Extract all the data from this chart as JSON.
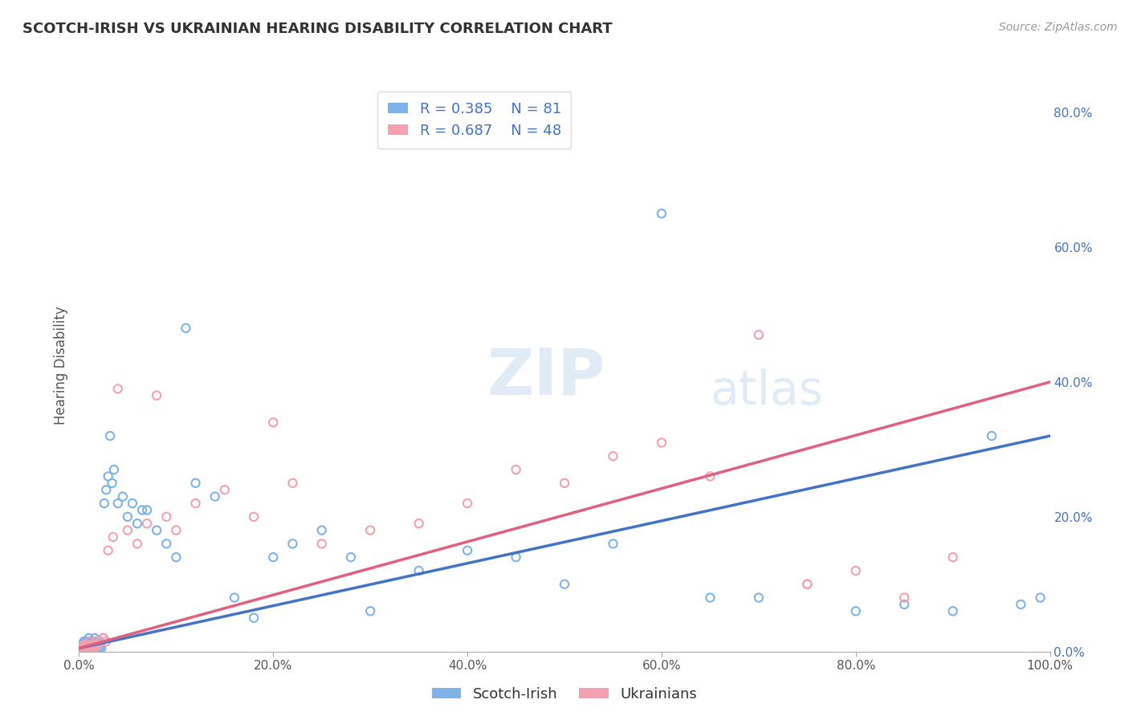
{
  "title": "SCOTCH-IRISH VS UKRAINIAN HEARING DISABILITY CORRELATION CHART",
  "source": "Source: ZipAtlas.com",
  "ylabel": "Hearing Disability",
  "xlim": [
    0,
    1.0
  ],
  "ylim": [
    0,
    0.85
  ],
  "xticks": [
    0.0,
    0.2,
    0.4,
    0.6,
    0.8,
    1.0
  ],
  "xticklabels": [
    "0.0%",
    "20.0%",
    "40.0%",
    "60.0%",
    "80.0%",
    "100.0%"
  ],
  "yticks_right": [
    0.0,
    0.2,
    0.4,
    0.6,
    0.8
  ],
  "yticklabels_right": [
    "0.0%",
    "20.0%",
    "40.0%",
    "60.0%",
    "80.0%"
  ],
  "legend_r1": "R = 0.385",
  "legend_n1": "N = 81",
  "legend_r2": "R = 0.687",
  "legend_n2": "N = 48",
  "series1_color": "#7fb3e8",
  "series2_color": "#f4a0b0",
  "trend1_color": "#4472c4",
  "trend2_color": "#e06080",
  "watermark": "ZIPatlas",
  "background_color": "#ffffff",
  "grid_color": "#cccccc",
  "trend1_y_start": 0.005,
  "trend1_y_end": 0.32,
  "trend2_y_start": 0.005,
  "trend2_y_end": 0.4,
  "scatter1_x": [
    0.002,
    0.003,
    0.003,
    0.004,
    0.004,
    0.005,
    0.005,
    0.005,
    0.006,
    0.006,
    0.007,
    0.007,
    0.008,
    0.008,
    0.009,
    0.009,
    0.01,
    0.01,
    0.01,
    0.011,
    0.011,
    0.012,
    0.012,
    0.013,
    0.013,
    0.014,
    0.014,
    0.015,
    0.015,
    0.016,
    0.016,
    0.017,
    0.018,
    0.018,
    0.019,
    0.02,
    0.021,
    0.022,
    0.023,
    0.025,
    0.026,
    0.028,
    0.03,
    0.032,
    0.034,
    0.036,
    0.04,
    0.045,
    0.05,
    0.055,
    0.06,
    0.065,
    0.07,
    0.08,
    0.09,
    0.1,
    0.11,
    0.12,
    0.14,
    0.16,
    0.18,
    0.2,
    0.22,
    0.25,
    0.28,
    0.3,
    0.35,
    0.4,
    0.45,
    0.5,
    0.55,
    0.6,
    0.65,
    0.7,
    0.75,
    0.8,
    0.85,
    0.9,
    0.94,
    0.97,
    0.99
  ],
  "scatter1_y": [
    0.005,
    0.005,
    0.01,
    0.005,
    0.01,
    0.005,
    0.01,
    0.015,
    0.005,
    0.01,
    0.005,
    0.015,
    0.005,
    0.01,
    0.005,
    0.015,
    0.005,
    0.01,
    0.02,
    0.005,
    0.015,
    0.005,
    0.01,
    0.015,
    0.005,
    0.005,
    0.015,
    0.005,
    0.01,
    0.005,
    0.02,
    0.01,
    0.005,
    0.015,
    0.005,
    0.015,
    0.005,
    0.01,
    0.005,
    0.02,
    0.22,
    0.24,
    0.26,
    0.32,
    0.25,
    0.27,
    0.22,
    0.23,
    0.2,
    0.22,
    0.19,
    0.21,
    0.21,
    0.18,
    0.16,
    0.14,
    0.48,
    0.25,
    0.23,
    0.08,
    0.05,
    0.14,
    0.16,
    0.18,
    0.14,
    0.06,
    0.12,
    0.15,
    0.14,
    0.1,
    0.16,
    0.65,
    0.08,
    0.08,
    0.1,
    0.06,
    0.07,
    0.06,
    0.32,
    0.07,
    0.08
  ],
  "scatter2_x": [
    0.002,
    0.003,
    0.004,
    0.005,
    0.006,
    0.007,
    0.008,
    0.009,
    0.01,
    0.011,
    0.012,
    0.013,
    0.014,
    0.015,
    0.016,
    0.018,
    0.02,
    0.022,
    0.025,
    0.028,
    0.03,
    0.035,
    0.04,
    0.05,
    0.06,
    0.07,
    0.08,
    0.09,
    0.1,
    0.12,
    0.15,
    0.18,
    0.2,
    0.22,
    0.25,
    0.3,
    0.35,
    0.4,
    0.45,
    0.5,
    0.55,
    0.6,
    0.65,
    0.7,
    0.75,
    0.8,
    0.85,
    0.9
  ],
  "scatter2_y": [
    0.005,
    0.005,
    0.005,
    0.01,
    0.005,
    0.01,
    0.005,
    0.01,
    0.005,
    0.015,
    0.005,
    0.01,
    0.005,
    0.01,
    0.005,
    0.015,
    0.01,
    0.015,
    0.02,
    0.015,
    0.15,
    0.17,
    0.39,
    0.18,
    0.16,
    0.19,
    0.38,
    0.2,
    0.18,
    0.22,
    0.24,
    0.2,
    0.34,
    0.25,
    0.16,
    0.18,
    0.19,
    0.22,
    0.27,
    0.25,
    0.29,
    0.31,
    0.26,
    0.47,
    0.1,
    0.12,
    0.08,
    0.14
  ]
}
